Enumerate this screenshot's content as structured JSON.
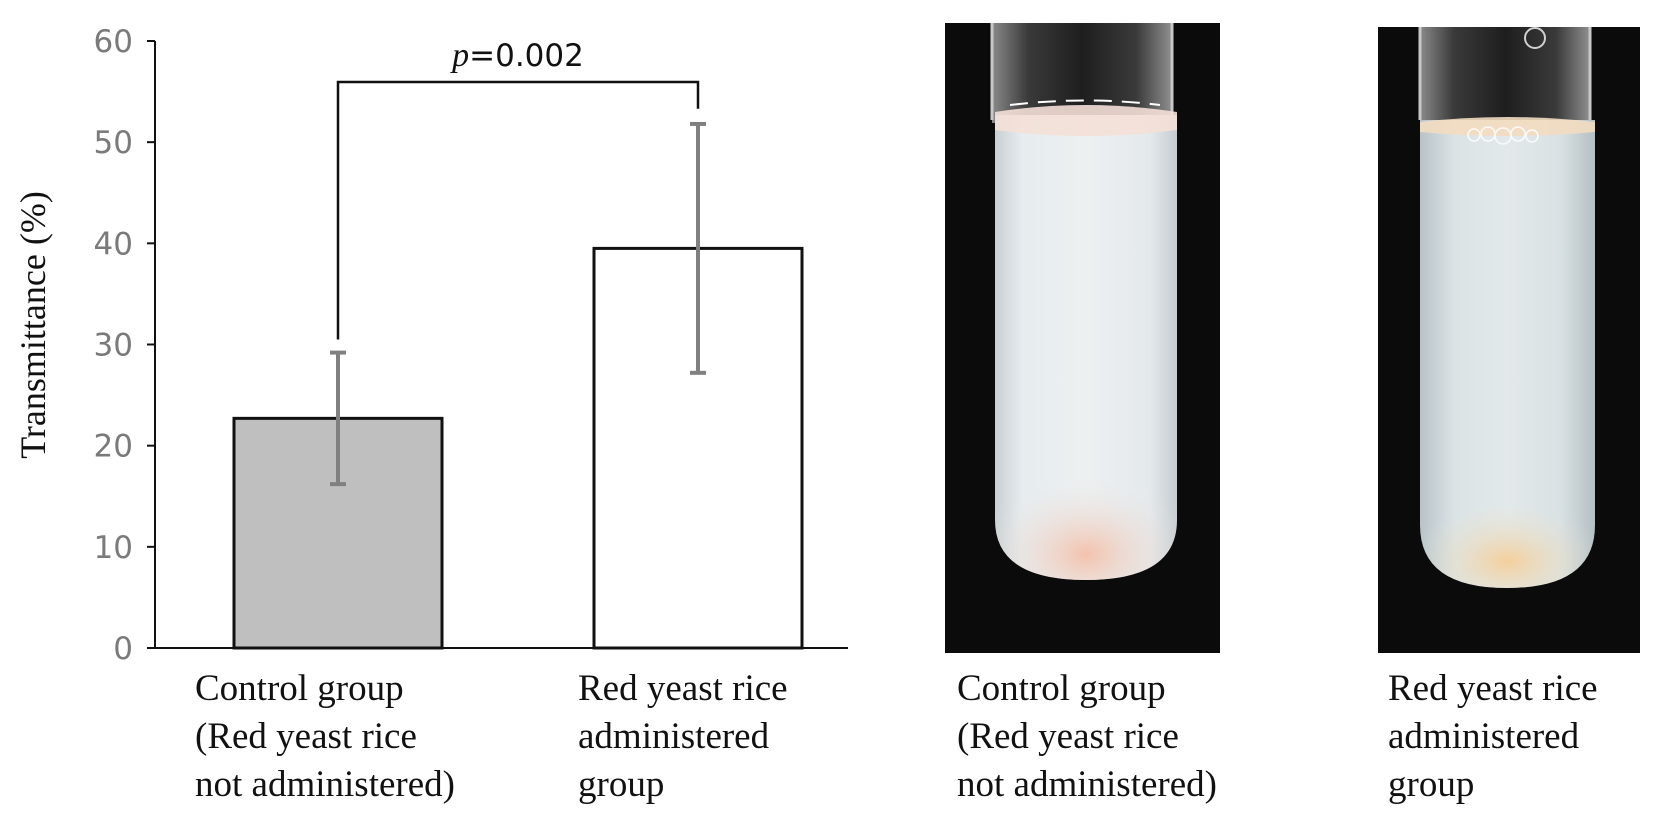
{
  "chart_data": {
    "type": "bar",
    "ylabel": "Transmittance (%)",
    "ylim": [
      0,
      60
    ],
    "yticks": [
      0,
      10,
      20,
      30,
      40,
      50,
      60
    ],
    "categories": [
      [
        "Control group",
        "(Red yeast rice",
        "not administered)"
      ],
      [
        "Red yeast rice",
        "administered",
        "group"
      ]
    ],
    "values": [
      22.7,
      39.5
    ],
    "error": [
      6.5,
      12.3
    ],
    "bar_colors": [
      "#bfbfbf",
      "#ffffff"
    ],
    "error_bar_color": "#808080",
    "significance": {
      "p_italic": "p",
      "p_rest": "=0.002"
    }
  },
  "photos": [
    {
      "caption": [
        "Control group",
        "(Red yeast rice",
        "not administered)"
      ],
      "liquid_color": "#dfe6ea",
      "description_icon": "test-tube-cloudy"
    },
    {
      "caption": [
        "Red yeast rice",
        "administered",
        "group"
      ],
      "liquid_color": "#dbe3e6",
      "description_icon": "test-tube-clear"
    }
  ]
}
